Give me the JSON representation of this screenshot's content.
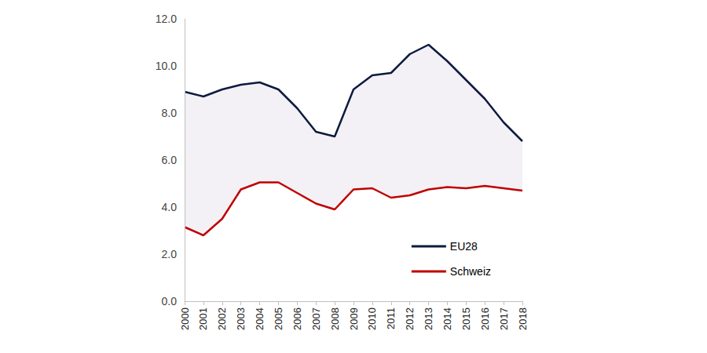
{
  "chart_data": {
    "type": "line",
    "categories": [
      "2000",
      "2001",
      "2002",
      "2003",
      "2004",
      "2005",
      "2006",
      "2007",
      "2008",
      "2009",
      "2010",
      "2011",
      "2012",
      "2013",
      "2014",
      "2015",
      "2016",
      "2017",
      "2018"
    ],
    "series": [
      {
        "name": "EU28",
        "color": "#0d1b3e",
        "values": [
          8.9,
          8.7,
          9.0,
          9.2,
          9.3,
          9.0,
          8.2,
          7.2,
          7.0,
          9.0,
          9.6,
          9.7,
          10.5,
          10.9,
          10.2,
          9.4,
          8.6,
          7.6,
          6.8
        ]
      },
      {
        "name": "Schweiz",
        "color": "#c00000",
        "values": [
          3.15,
          2.8,
          3.5,
          4.75,
          5.05,
          5.05,
          4.6,
          4.15,
          3.9,
          4.75,
          4.8,
          4.4,
          4.5,
          4.75,
          4.85,
          4.8,
          4.9,
          4.8,
          4.7
        ]
      }
    ],
    "ylim": [
      0,
      12
    ],
    "yticks": [
      {
        "value": 0,
        "label": "0.0"
      },
      {
        "value": 2,
        "label": "2.0"
      },
      {
        "value": 4,
        "label": "4.0"
      },
      {
        "value": 6,
        "label": "6.0"
      },
      {
        "value": 8,
        "label": "8.0"
      },
      {
        "value": 10,
        "label": "10.0"
      },
      {
        "value": 12,
        "label": "12.0"
      }
    ],
    "grid": false,
    "legend": "lower right"
  }
}
